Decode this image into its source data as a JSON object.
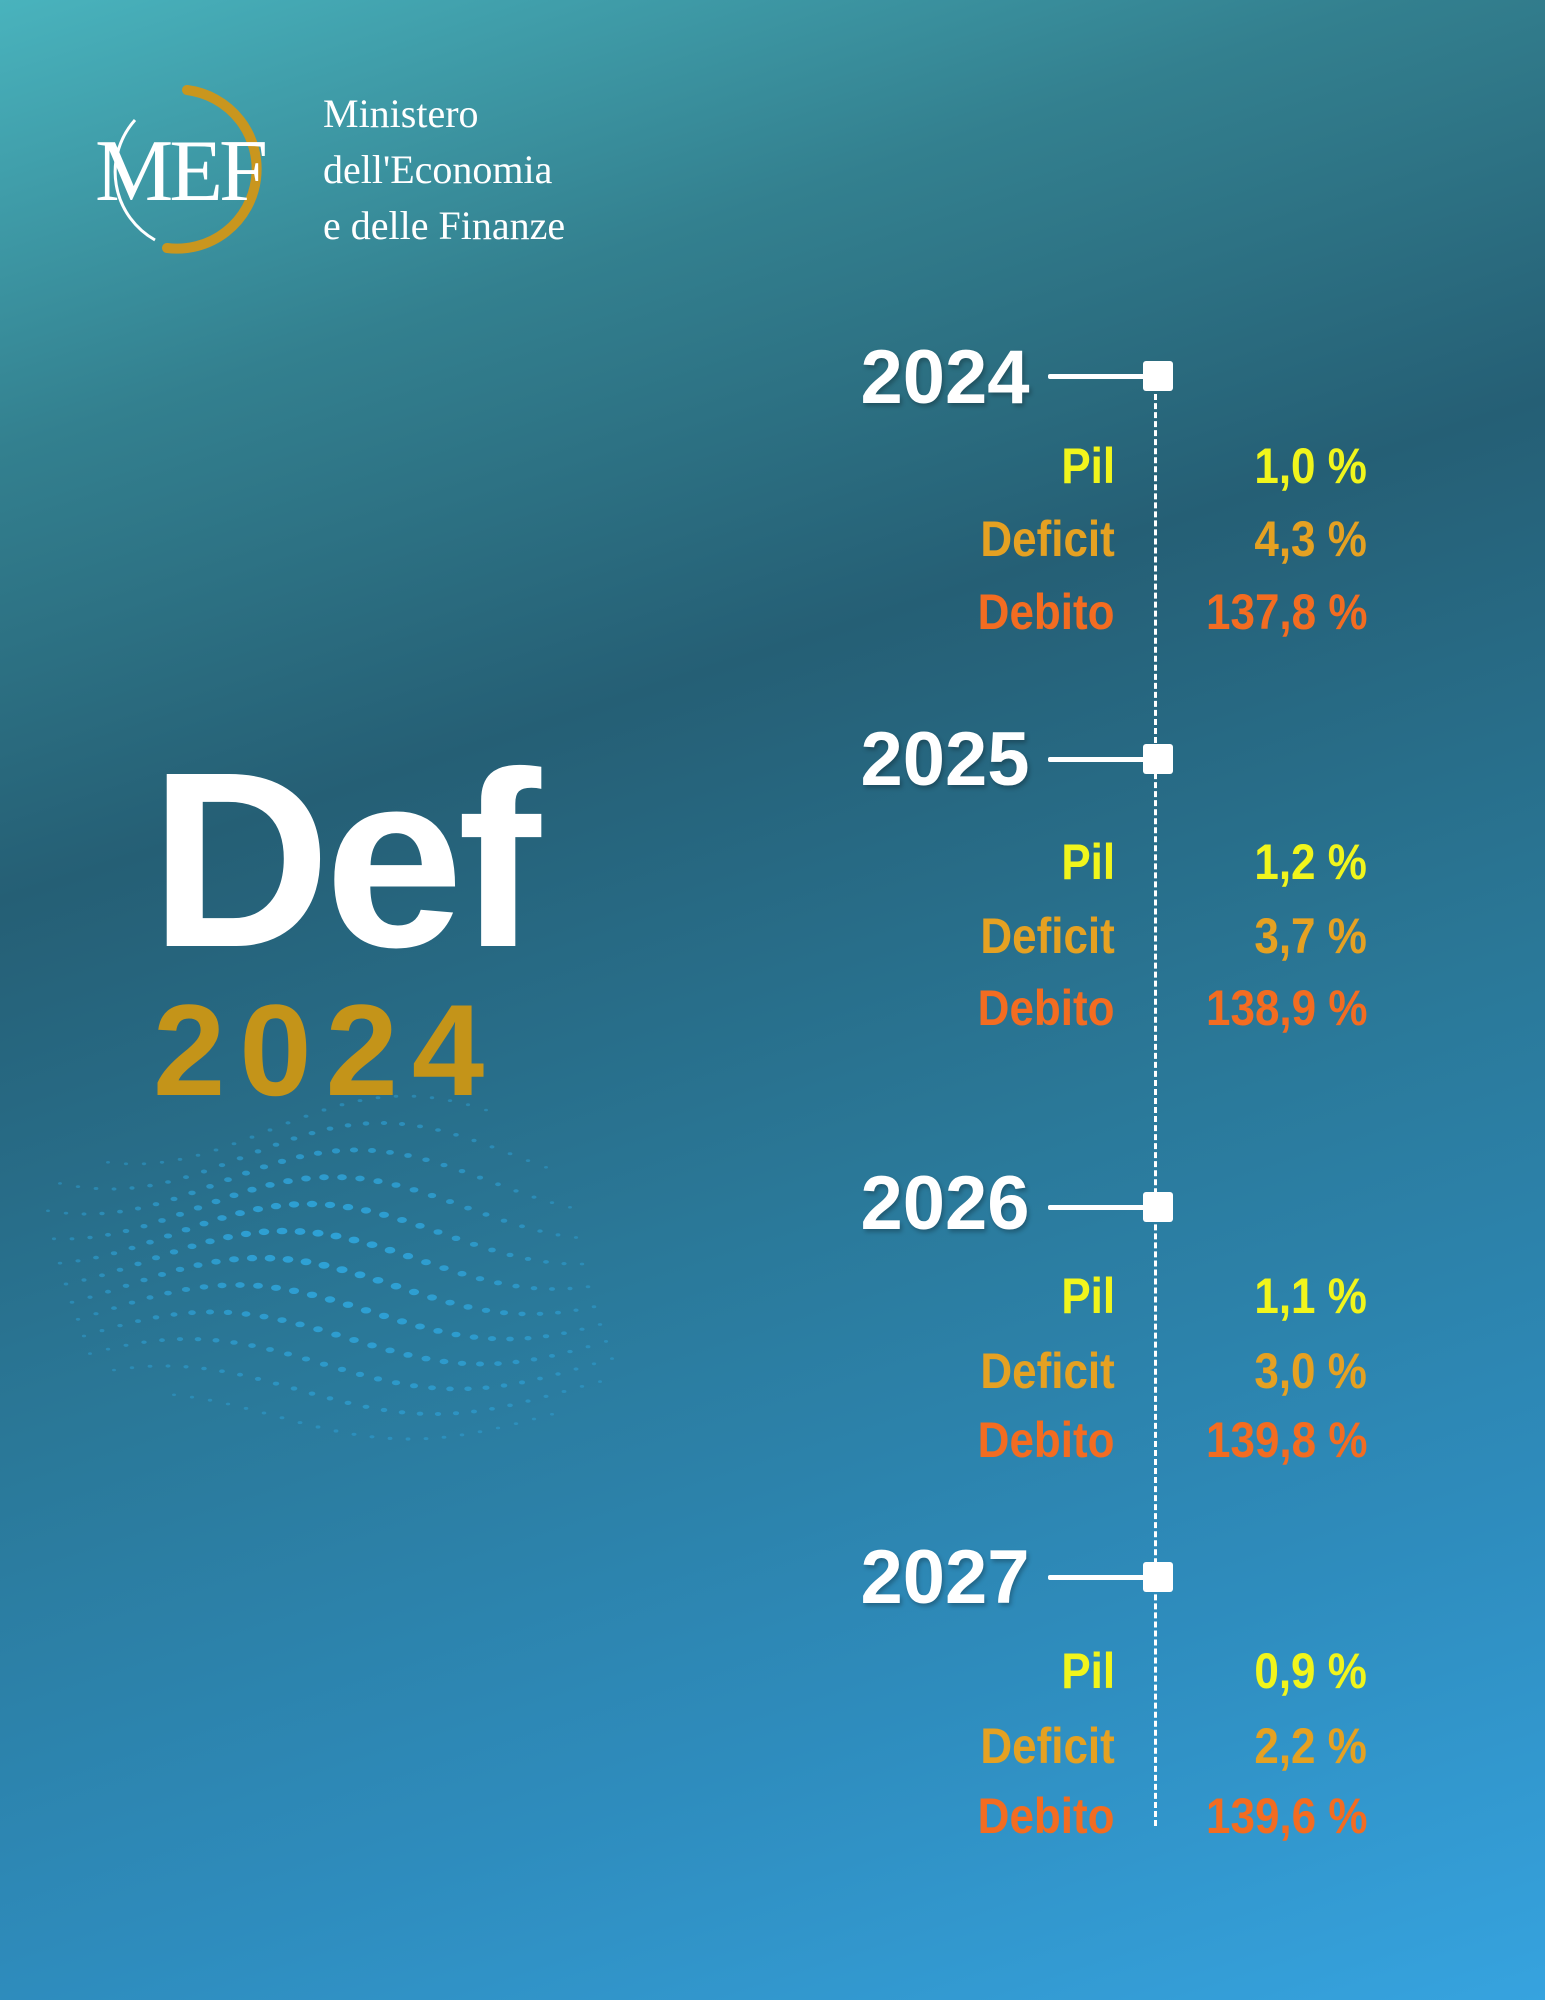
{
  "logo": {
    "icon": "mef-logo-icon",
    "mark_text": "MEF"
  },
  "ministry": {
    "line1": "Ministero",
    "line2": "dell'Economia",
    "line3": "e delle Finanze"
  },
  "title": {
    "main": "Def",
    "year": "2024"
  },
  "colors": {
    "pil": "#f1f51c",
    "deficit": "#e5a122",
    "debito": "#f36c21",
    "title_year": "#c49419",
    "logo_ring": "#c9961e"
  },
  "timeline": [
    {
      "year": "2024",
      "rows": [
        {
          "label": "Pil",
          "value": "1,0 %"
        },
        {
          "label": "Deficit",
          "value": "4,3 %"
        },
        {
          "label": "Debito",
          "value": "137,8 %"
        }
      ]
    },
    {
      "year": "2025",
      "rows": [
        {
          "label": "Pil",
          "value": "1,2 %"
        },
        {
          "label": "Deficit",
          "value": "3,7 %"
        },
        {
          "label": "Debito",
          "value": "138,9 %"
        }
      ]
    },
    {
      "year": "2026",
      "rows": [
        {
          "label": "Pil",
          "value": "1,1 %"
        },
        {
          "label": "Deficit",
          "value": "3,0 %"
        },
        {
          "label": "Debito",
          "value": "139,8 %"
        }
      ]
    },
    {
      "year": "2027",
      "rows": [
        {
          "label": "Pil",
          "value": "0,9 %"
        },
        {
          "label": "Deficit",
          "value": "2,2 %"
        },
        {
          "label": "Debito",
          "value": "139,6 %"
        }
      ]
    }
  ]
}
